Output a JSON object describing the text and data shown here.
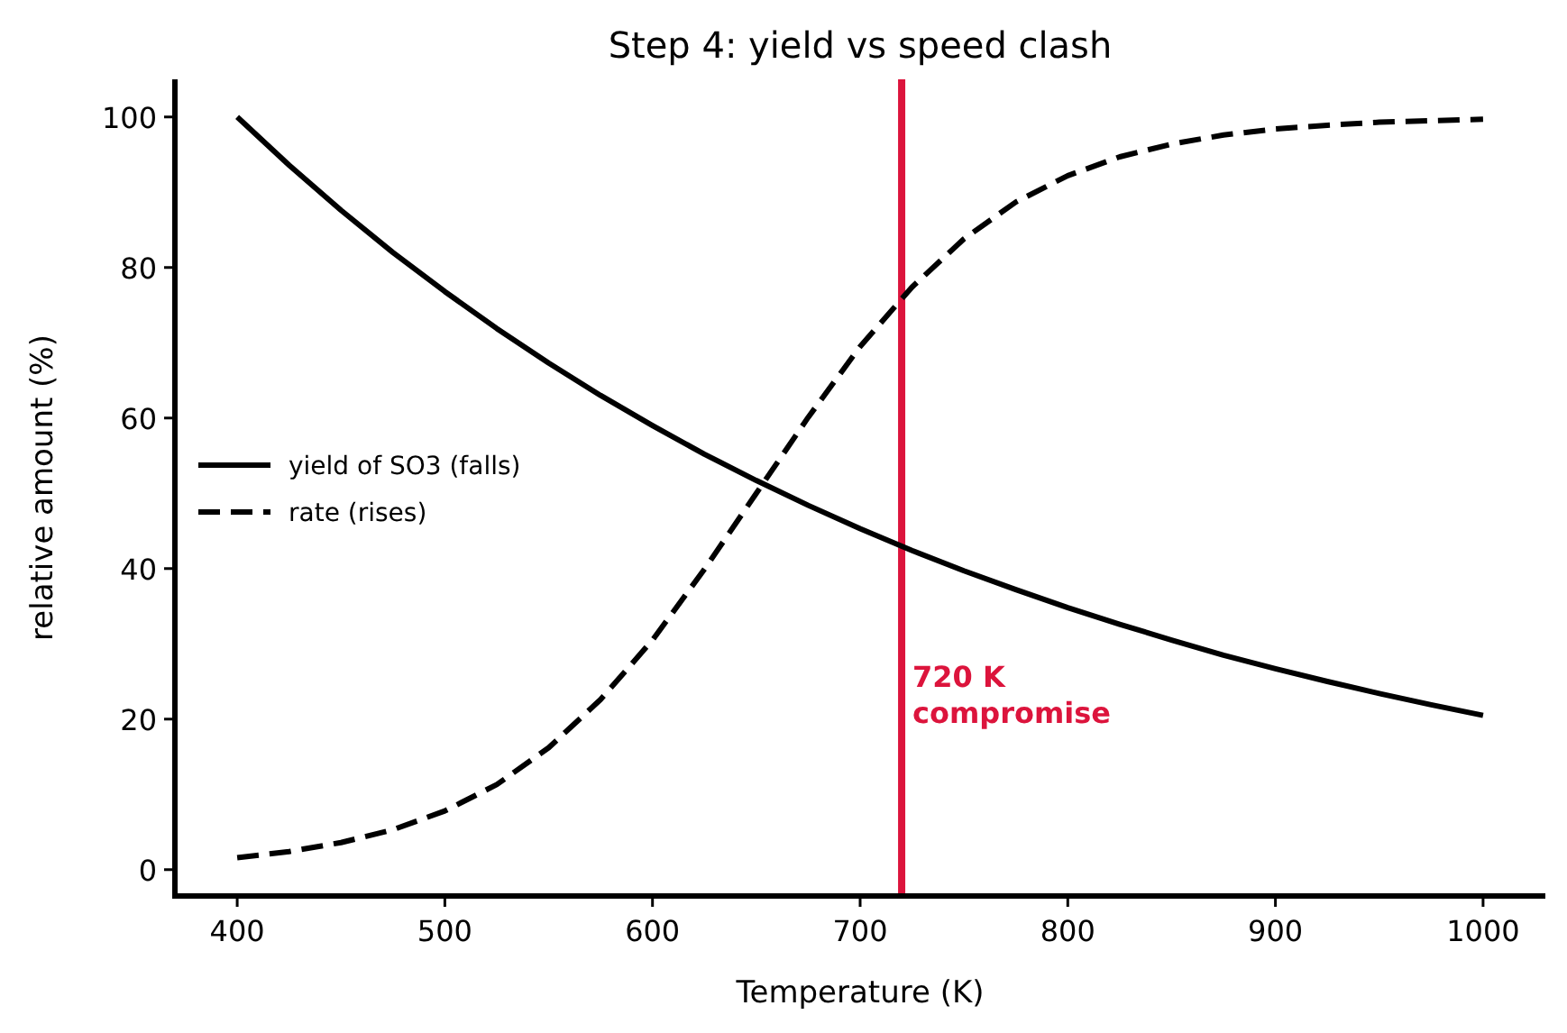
{
  "chart_data": {
    "type": "line",
    "title": "Step 4: yield vs speed clash",
    "xlabel": "Temperature (K)",
    "ylabel": "relative amount (%)",
    "x": [
      400,
      425,
      450,
      475,
      500,
      525,
      550,
      575,
      600,
      625,
      650,
      675,
      700,
      725,
      750,
      775,
      800,
      825,
      850,
      875,
      900,
      925,
      950,
      975,
      1000
    ],
    "series": [
      {
        "name": "yield of SO3 (falls)",
        "color": "#000000",
        "line_style": "solid",
        "values": [
          100,
          93.6,
          87.6,
          82.0,
          76.8,
          71.9,
          67.3,
          63.0,
          59.0,
          55.2,
          51.7,
          48.4,
          45.3,
          42.4,
          39.7,
          37.2,
          34.8,
          32.6,
          30.5,
          28.5,
          26.7,
          25.0,
          23.4,
          21.9,
          20.5
        ]
      },
      {
        "name": "rate (rises)",
        "color": "#000000",
        "line_style": "dashed",
        "values": [
          1.6,
          2.4,
          3.6,
          5.3,
          7.8,
          11.3,
          16.2,
          22.6,
          30.5,
          39.9,
          50,
          60.1,
          69.5,
          77.4,
          83.8,
          88.7,
          92.2,
          94.7,
          96.4,
          97.6,
          98.4,
          98.9,
          99.3,
          99.5,
          99.7
        ]
      }
    ],
    "xlim": [
      370,
      1030
    ],
    "xticks": [
      400,
      500,
      600,
      700,
      800,
      900,
      1000
    ],
    "ylim": [
      -3.5,
      105
    ],
    "yticks": [
      0,
      20,
      40,
      60,
      80,
      100
    ],
    "ref_lines": [
      {
        "axis": "x",
        "value": 720,
        "label": "720 K\ncompromise",
        "color": "#dc143c"
      }
    ],
    "grid": false,
    "legend": "center left",
    "marker": "none"
  }
}
